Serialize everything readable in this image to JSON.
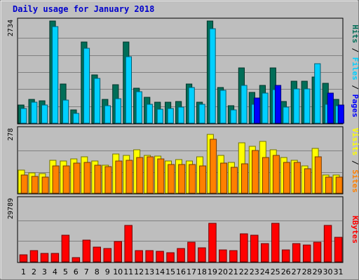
{
  "chart_data": {
    "type": "bar",
    "title": "Daily usage for January 2018",
    "colors": {
      "background": "#c0c0c0",
      "plot_bg": "#bebebe",
      "title": "#0000cc",
      "hits": "#006e58",
      "files": "#00d0ff",
      "pages": "#0000ff",
      "visits": "#ffff00",
      "sites": "#ff8000",
      "kbytes": "#ff0000",
      "weekend": "#00804f",
      "grid": "#808080"
    },
    "x_labels": [
      "1",
      "2",
      "3",
      "4",
      "5",
      "6",
      "7",
      "8",
      "9",
      "10",
      "11",
      "12",
      "13",
      "14",
      "15",
      "16",
      "17",
      "18",
      "19",
      "20",
      "21",
      "22",
      "23",
      "24",
      "25",
      "26",
      "27",
      "28",
      "29",
      "30",
      "31"
    ],
    "weekend_days": [
      "6",
      "7",
      "13",
      "14",
      "20",
      "21",
      "27",
      "28"
    ],
    "panels": [
      {
        "id": "hits-files-pages",
        "ymax_label": "2734",
        "ymax": 2734,
        "side_labels": [
          {
            "text": "Hits",
            "color": "#006e58"
          },
          {
            "text": " / ",
            "color": "#000000"
          },
          {
            "text": "Files",
            "color": "#00d0ff"
          },
          {
            "text": " / ",
            "color": "#000000"
          },
          {
            "text": "Pages",
            "color": "#0000ff"
          }
        ],
        "series": [
          {
            "name": "Hits",
            "color": "#006e58",
            "values": [
              480,
              640,
              590,
              2734,
              1050,
              360,
              2180,
              1300,
              640,
              1030,
              2170,
              940,
              690,
              560,
              570,
              580,
              1050,
              570,
              2734,
              960,
              470,
              1480,
              830,
              1020,
              1480,
              580,
              1120,
              1130,
              1240,
              1070,
              640
            ]
          },
          {
            "name": "Files",
            "color": "#00d0ff",
            "values": [
              400,
              560,
              490,
              2580,
              620,
              270,
              2000,
              1200,
              470,
              660,
              1780,
              850,
              500,
              380,
              400,
              440,
              960,
              500,
              2520,
              880,
              360,
              1020,
              510,
              810,
              890,
              440,
              910,
              920,
              1600,
              500,
              460
            ]
          },
          {
            "name": "Pages",
            "color": "#0000ff",
            "values": [
              0,
              0,
              0,
              0,
              0,
              0,
              0,
              0,
              0,
              0,
              0,
              0,
              0,
              0,
              0,
              0,
              0,
              0,
              0,
              0,
              0,
              0,
              680,
              0,
              1020,
              0,
              0,
              0,
              0,
              800,
              490
            ]
          }
        ]
      },
      {
        "id": "visits-sites",
        "ymax_label": "278",
        "ymax": 278,
        "side_labels": [
          {
            "text": "Visits",
            "color": "#ffff00"
          },
          {
            "text": " / ",
            "color": "#000000"
          },
          {
            "text": "Sites",
            "color": "#ff8000"
          }
        ],
        "series": [
          {
            "name": "Visits",
            "color": "#ffff00",
            "values": [
              100,
              88,
              85,
              145,
              140,
              150,
              160,
              140,
              122,
              170,
              165,
              190,
              165,
              163,
              140,
              148,
              140,
              160,
              258,
              165,
              135,
              220,
              205,
              225,
              188,
              155,
              145,
              120,
              196,
              78,
              78
            ]
          },
          {
            "name": "Sites",
            "color": "#ff8000",
            "values": [
              80,
              72,
              70,
              120,
              120,
              130,
              135,
              122,
              115,
              140,
              145,
              155,
              158,
              150,
              125,
              125,
              125,
              120,
              235,
              130,
              112,
              128,
              185,
              155,
              165,
              135,
              135,
              108,
              160,
              70,
              70
            ]
          }
        ]
      },
      {
        "id": "kbytes",
        "ymax_label": "29789",
        "ymax": 29789,
        "side_labels": [
          {
            "text": "KBytes",
            "color": "#ff0000"
          }
        ],
        "series": [
          {
            "name": "KBytes",
            "color": "#ff0000",
            "values": [
              3400,
              5200,
              3900,
              3900,
              12600,
              1900,
              10400,
              7100,
              6300,
              9700,
              17400,
              5500,
              5500,
              5100,
              4300,
              6400,
              9300,
              6800,
              18300,
              5800,
              5300,
              13300,
              12600,
              8700,
              18500,
              5700,
              8600,
              8100,
              9300,
              17300,
              11600
            ]
          }
        ]
      }
    ]
  }
}
